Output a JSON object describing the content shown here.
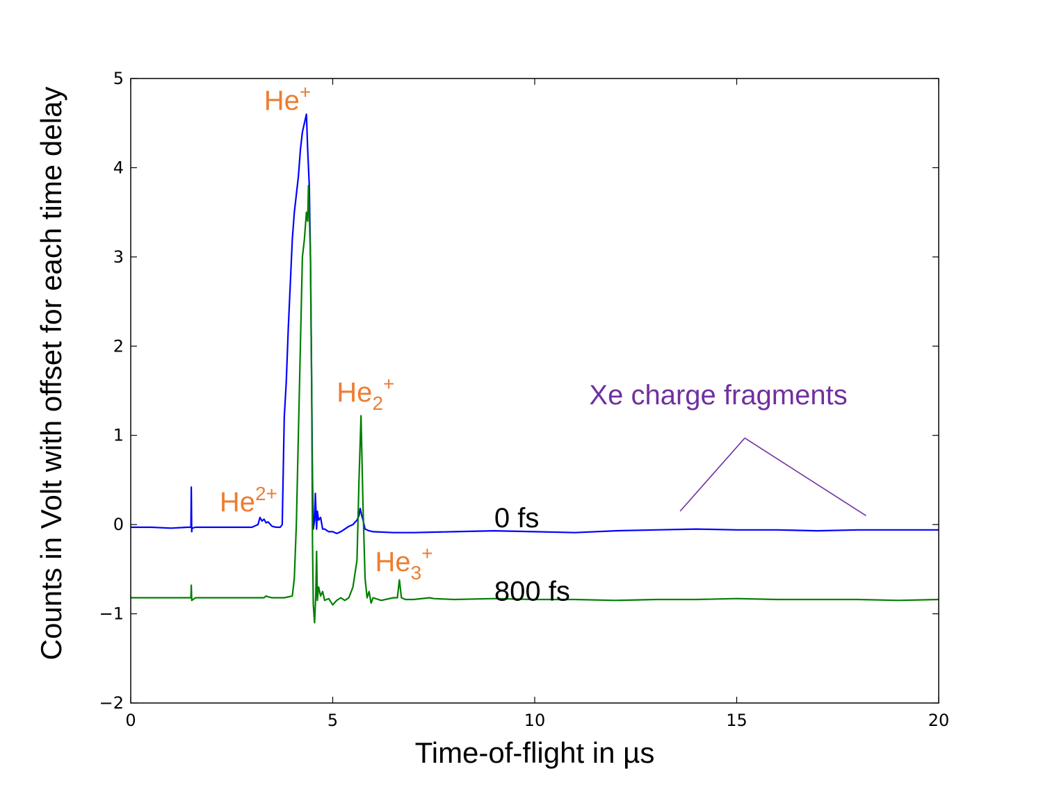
{
  "chart_data": {
    "type": "line",
    "xlabel": "Time-of-flight in µs",
    "ylabel": "Counts in Volt with offset for each time delay",
    "xlim": [
      0,
      20
    ],
    "ylim": [
      -2,
      5
    ],
    "xticks": [
      0,
      5,
      10,
      15,
      20
    ],
    "yticks": [
      -2,
      -1,
      0,
      1,
      2,
      3,
      4,
      5
    ],
    "xtick_labels": [
      "0",
      "5",
      "10",
      "15",
      "20"
    ],
    "ytick_labels": [
      "−2",
      "−1",
      "0",
      "1",
      "2",
      "3",
      "4",
      "5"
    ],
    "grid": false,
    "series": [
      {
        "name": "0 fs",
        "color": "#0000ff",
        "x": [
          0,
          0.5,
          1.0,
          1.4,
          1.49,
          1.5,
          1.51,
          1.52,
          1.6,
          2.0,
          2.5,
          3.0,
          3.15,
          3.2,
          3.25,
          3.3,
          3.35,
          3.4,
          3.5,
          3.6,
          3.7,
          3.75,
          3.8,
          3.85,
          3.9,
          3.95,
          4.0,
          4.05,
          4.1,
          4.15,
          4.2,
          4.25,
          4.3,
          4.35,
          4.38,
          4.42,
          4.45,
          4.48,
          4.5,
          4.52,
          4.55,
          4.57,
          4.6,
          4.62,
          4.65,
          4.7,
          4.75,
          4.8,
          4.9,
          5.0,
          5.1,
          5.2,
          5.3,
          5.4,
          5.5,
          5.6,
          5.65,
          5.68,
          5.72,
          5.75,
          5.8,
          5.9,
          6.0,
          6.5,
          7.0,
          8.0,
          9.0,
          10.0,
          11.0,
          12.0,
          13.0,
          14.0,
          15.0,
          16.0,
          17.0,
          18.0,
          19.0,
          20.0
        ],
        "y": [
          -0.03,
          -0.03,
          -0.04,
          -0.03,
          -0.03,
          0.42,
          -0.08,
          -0.04,
          -0.03,
          -0.03,
          -0.03,
          -0.03,
          0.0,
          0.08,
          0.04,
          0.06,
          0.02,
          0.03,
          -0.02,
          -0.03,
          -0.03,
          0.0,
          1.2,
          1.6,
          2.2,
          2.7,
          3.2,
          3.5,
          3.7,
          3.9,
          4.2,
          4.4,
          4.5,
          4.6,
          4.2,
          3.8,
          3.0,
          1.5,
          0.5,
          -0.05,
          0.05,
          0.35,
          -0.05,
          0.15,
          0.05,
          0.08,
          -0.05,
          -0.05,
          -0.08,
          -0.08,
          -0.1,
          -0.08,
          -0.05,
          -0.02,
          0.0,
          0.05,
          0.1,
          0.18,
          0.1,
          0.05,
          -0.05,
          -0.07,
          -0.08,
          -0.09,
          -0.09,
          -0.08,
          -0.07,
          -0.08,
          -0.09,
          -0.07,
          -0.06,
          -0.05,
          -0.06,
          -0.06,
          -0.07,
          -0.06,
          -0.06,
          -0.06
        ]
      },
      {
        "name": "800 fs",
        "color": "#007f00",
        "x": [
          0,
          0.5,
          1.0,
          1.49,
          1.5,
          1.51,
          1.6,
          2.0,
          3.0,
          3.3,
          3.35,
          3.4,
          3.5,
          3.8,
          4.0,
          4.05,
          4.1,
          4.15,
          4.2,
          4.25,
          4.3,
          4.35,
          4.38,
          4.4,
          4.42,
          4.45,
          4.48,
          4.5,
          4.52,
          4.55,
          4.58,
          4.6,
          4.62,
          4.65,
          4.7,
          4.75,
          4.8,
          4.9,
          5.0,
          5.1,
          5.2,
          5.3,
          5.4,
          5.5,
          5.6,
          5.65,
          5.7,
          5.75,
          5.8,
          5.85,
          5.9,
          5.95,
          6.0,
          6.2,
          6.5,
          6.6,
          6.65,
          6.7,
          6.8,
          7.0,
          7.4,
          7.5,
          8.0,
          9.0,
          10.0,
          11.0,
          12.0,
          13.0,
          14.0,
          15.0,
          16.0,
          17.0,
          18.0,
          19.0,
          20.0
        ],
        "y": [
          -0.82,
          -0.82,
          -0.82,
          -0.82,
          -0.68,
          -0.85,
          -0.82,
          -0.82,
          -0.82,
          -0.82,
          -0.8,
          -0.81,
          -0.82,
          -0.82,
          -0.8,
          -0.6,
          0.0,
          1.0,
          2.0,
          3.0,
          3.2,
          3.5,
          3.4,
          3.8,
          3.5,
          3.0,
          1.5,
          -0.2,
          -0.9,
          -1.1,
          -0.8,
          -0.3,
          -0.85,
          -0.7,
          -0.8,
          -0.75,
          -0.85,
          -0.83,
          -0.9,
          -0.85,
          -0.82,
          -0.85,
          -0.82,
          -0.7,
          -0.4,
          0.5,
          1.22,
          0.2,
          -0.6,
          -0.82,
          -0.75,
          -0.88,
          -0.82,
          -0.85,
          -0.82,
          -0.82,
          -0.62,
          -0.82,
          -0.84,
          -0.84,
          -0.82,
          -0.83,
          -0.84,
          -0.83,
          -0.84,
          -0.84,
          -0.85,
          -0.84,
          -0.84,
          -0.83,
          -0.84,
          -0.84,
          -0.84,
          -0.85,
          -0.84
        ]
      }
    ],
    "annotations": [
      {
        "id": "he1",
        "base": "He",
        "sup": "+",
        "sub": "",
        "x": 3.3,
        "y": 4.65,
        "color": "#ed7d31"
      },
      {
        "id": "he2plus",
        "base": "He",
        "sup": "2+",
        "sub": "",
        "x": 2.2,
        "y": 0.15,
        "color": "#ed7d31"
      },
      {
        "id": "he2",
        "base": "He",
        "sup": "+",
        "sub": "2",
        "x": 5.1,
        "y": 1.38,
        "color": "#ed7d31"
      },
      {
        "id": "he3",
        "base": "He",
        "sup": "+",
        "sub": "3",
        "x": 6.05,
        "y": -0.52,
        "color": "#ed7d31"
      },
      {
        "id": "fs0",
        "base": "0 fs",
        "sup": "",
        "sub": "",
        "x": 9.0,
        "y": -0.03,
        "color": "#000000"
      },
      {
        "id": "fs800",
        "base": "800 fs",
        "sup": "",
        "sub": "",
        "x": 9.0,
        "y": -0.85,
        "color": "#000000"
      },
      {
        "id": "xe",
        "base": "Xe charge fragments",
        "sup": "",
        "sub": "",
        "x": 11.35,
        "y": 1.35,
        "color": "#7030a0"
      }
    ],
    "pointer_lines": [
      {
        "color": "#7030a0",
        "from": [
          15.2,
          0.97
        ],
        "to": [
          13.6,
          0.15
        ]
      },
      {
        "color": "#7030a0",
        "from": [
          15.2,
          0.97
        ],
        "to": [
          18.2,
          0.1
        ]
      }
    ]
  }
}
